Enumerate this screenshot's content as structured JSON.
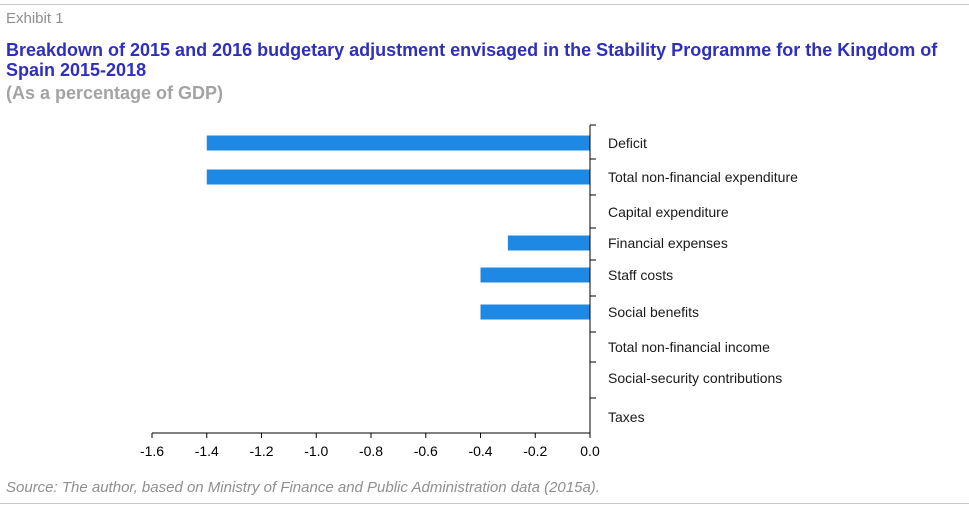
{
  "header": {
    "exhibit": "Exhibit 1",
    "title": "Breakdown of 2015 and 2016 budgetary adjustment envisaged in the Stability Programme for the Kingdom of Spain 2015-2018",
    "subtitle": "(As a percentage of GDP)"
  },
  "footer": {
    "source": "Source: The author, based on Ministry of Finance and Public Administration data (2015a)."
  },
  "colors": {
    "bar": "#1e88e5",
    "title": "#2f2fbf",
    "axis": "#000000"
  },
  "chart_data": {
    "type": "bar",
    "orientation": "horizontal",
    "title": "Breakdown of 2015 and 2016 budgetary adjustment envisaged in the Stability Programme for the Kingdom of Spain 2015-2018",
    "subtitle": "(As a percentage of GDP)",
    "categories": [
      "Deficit",
      "Total non-financial expenditure",
      "Capital expenditure",
      "Financial expenses",
      "Staff costs",
      "Social benefits",
      "Total non-financial income",
      "Social-security contributions",
      "Taxes"
    ],
    "values": [
      -1.4,
      -1.4,
      0.0,
      -0.3,
      -0.4,
      -0.4,
      0.0,
      0.0,
      0.0
    ],
    "xlim": [
      -1.6,
      0.0
    ],
    "xticks": [
      -1.6,
      -1.4,
      -1.2,
      -1.0,
      -0.8,
      -0.6,
      -0.4,
      -0.2,
      0.0
    ],
    "xtick_labels": [
      "-1.6",
      "-1.4",
      "-1.2",
      "-1.0",
      "-0.8",
      "-0.6",
      "-0.4",
      "-0.2",
      "0.0"
    ],
    "grid": false,
    "legend": "none"
  }
}
